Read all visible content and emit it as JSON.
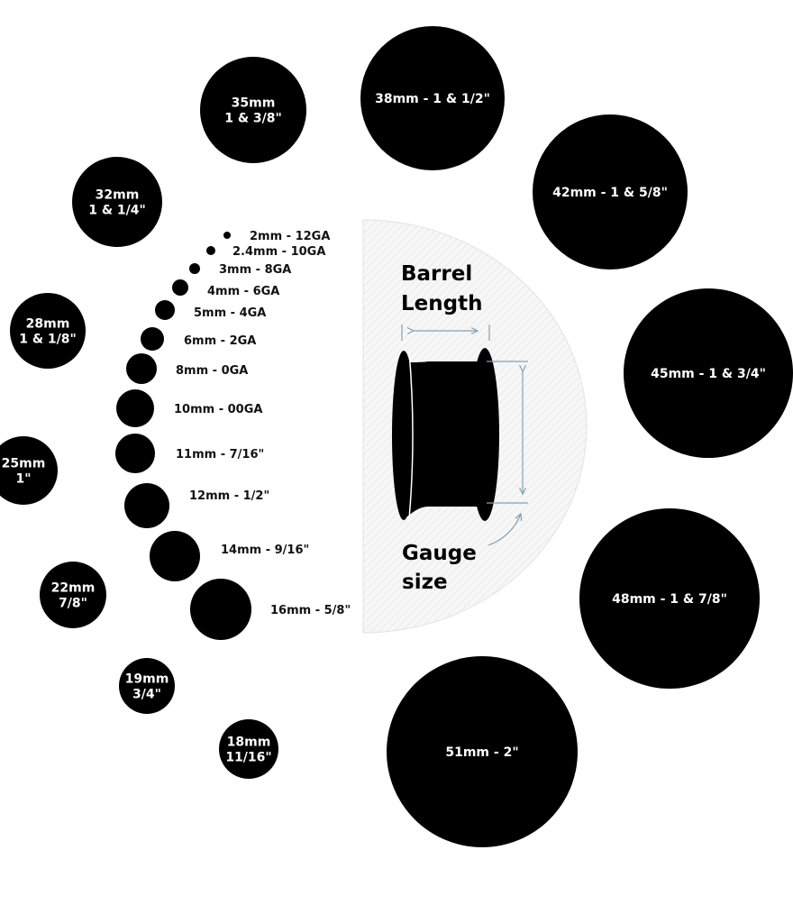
{
  "colors": {
    "plug": "#000000",
    "inner_text": "#ffffff",
    "small_text": "#111111",
    "accent": "#5b93b8",
    "panel": "#f3f3f3"
  },
  "diagram": {
    "barrel_label": [
      "Barrel",
      "Length"
    ],
    "gauge_label": [
      "Gauge",
      "size"
    ]
  },
  "small_sizes": [
    {
      "label": "2mm - 12GA"
    },
    {
      "label": "2.4mm - 10GA"
    },
    {
      "label": "3mm - 8GA"
    },
    {
      "label": "4mm - 6GA"
    },
    {
      "label": "5mm - 4GA"
    },
    {
      "label": "6mm - 2GA"
    },
    {
      "label": "8mm - 0GA"
    },
    {
      "label": "10mm - 00GA"
    },
    {
      "label": "11mm - 7/16\""
    },
    {
      "label": "12mm - 1/2\""
    },
    {
      "label": "14mm - 9/16\""
    },
    {
      "label": "16mm - 5/8\""
    }
  ],
  "large_sizes": [
    {
      "lines": [
        "18mm",
        "11/16\""
      ]
    },
    {
      "lines": [
        "19mm",
        "3/4\""
      ]
    },
    {
      "lines": [
        "22mm",
        "7/8\""
      ]
    },
    {
      "lines": [
        "25mm",
        "1\""
      ]
    },
    {
      "lines": [
        "28mm",
        "1 & 1/8\""
      ]
    },
    {
      "lines": [
        "32mm",
        "1 & 1/4\""
      ]
    },
    {
      "lines": [
        "35mm",
        "1 & 3/8\""
      ]
    },
    {
      "lines": [
        "38mm - 1 & 1/2\""
      ]
    },
    {
      "lines": [
        "42mm - 1 & 5/8\""
      ]
    },
    {
      "lines": [
        "45mm - 1 & 3/4\""
      ]
    },
    {
      "lines": [
        "48mm - 1 & 7/8\""
      ]
    },
    {
      "lines": [
        "51mm - 2\""
      ]
    }
  ]
}
